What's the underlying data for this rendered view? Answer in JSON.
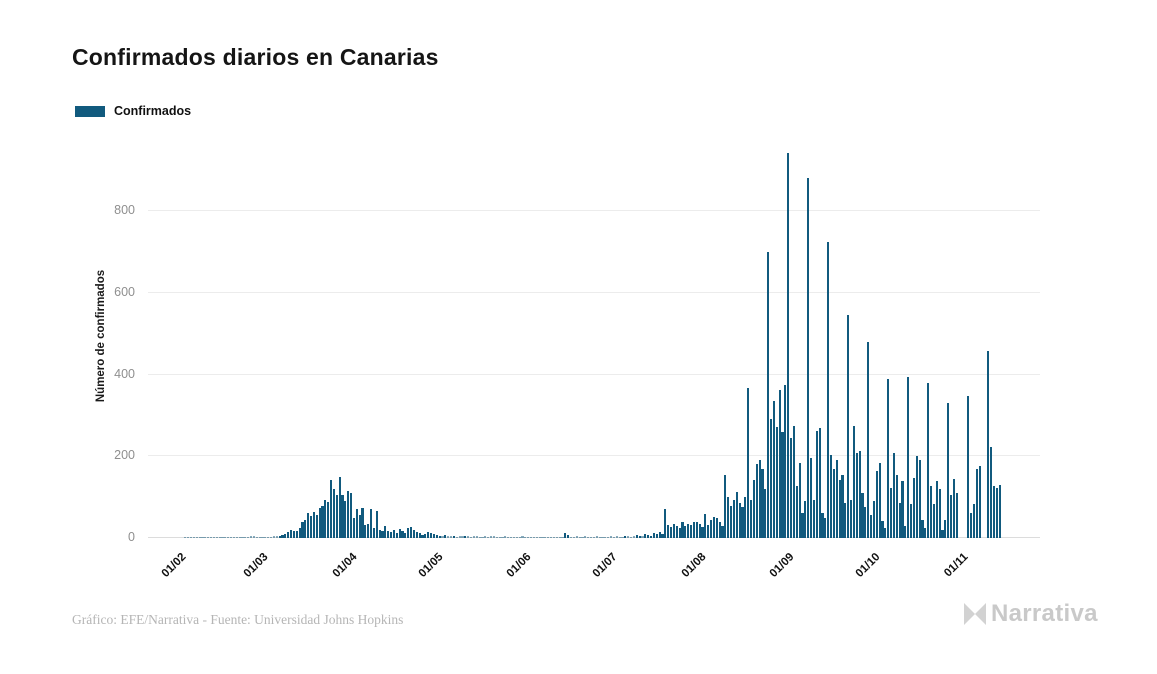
{
  "title": "Confirmados diarios en Canarias",
  "legend": {
    "label": "Confirmados",
    "swatch_color": "#115A7E"
  },
  "footer": {
    "credit": "Gráfico: EFE/Narrativa - Fuente: Universidad Johns Hopkins",
    "brand": "Narrativa"
  },
  "colors": {
    "bar": "#115A7E",
    "grid": "#ececec",
    "y_tick_text": "#8f8f8f",
    "x_tick_text": "#111111",
    "title_text": "#151515",
    "credit_text": "#b5b5b5",
    "brand_gray": "#c9c9c9"
  },
  "chart_data": {
    "type": "bar",
    "title": "Confirmados diarios en Canarias",
    "series_name": "Confirmados",
    "xlabel": "",
    "ylabel": "Número de confirmados",
    "ylim": [
      0,
      960
    ],
    "grid": "horizontal",
    "legend_position": "top-left",
    "y_ticks": [
      0,
      200,
      400,
      600,
      800
    ],
    "x_tick_labels": [
      "01/02",
      "01/03",
      "01/04",
      "01/05",
      "01/06",
      "01/07",
      "01/08",
      "01/09",
      "01/10",
      "01/11"
    ],
    "x_tick_day_indices": [
      10,
      39,
      70,
      100,
      131,
      161,
      192,
      223,
      253,
      284
    ],
    "first_day_label": "22/01",
    "values": [
      0,
      0,
      0,
      0,
      0,
      0,
      0,
      0,
      0,
      0,
      0,
      0,
      1,
      1,
      1,
      1,
      1,
      1,
      1,
      1,
      1,
      1,
      1,
      1,
      1,
      1,
      1,
      1,
      1,
      1,
      1,
      1,
      1,
      1,
      2,
      4,
      5,
      3,
      2,
      2,
      3,
      2,
      3,
      4,
      5,
      6,
      8,
      11,
      15,
      20,
      18,
      16,
      25,
      38,
      45,
      61,
      55,
      64,
      57,
      73,
      78,
      94,
      88,
      143,
      119,
      106,
      150,
      105,
      90,
      115,
      110,
      49,
      70,
      57,
      74,
      33,
      34,
      70,
      25,
      65,
      20,
      16,
      29,
      18,
      15,
      20,
      12,
      23,
      16,
      12,
      25,
      28,
      20,
      15,
      12,
      8,
      10,
      14,
      12,
      10,
      8,
      6,
      5,
      7,
      4,
      5,
      6,
      3,
      4,
      5,
      6,
      4,
      3,
      5,
      4,
      3,
      2,
      4,
      3,
      5,
      4,
      3,
      2,
      3,
      4,
      2,
      3,
      2,
      3,
      2,
      4,
      2,
      3,
      1,
      2,
      2,
      3,
      1,
      2,
      1,
      2,
      3,
      2,
      1,
      2,
      12,
      8,
      3,
      2,
      4,
      3,
      2,
      5,
      3,
      2,
      3,
      4,
      2,
      3,
      2,
      3,
      4,
      3,
      5,
      2,
      3,
      6,
      4,
      3,
      5,
      8,
      6,
      5,
      10,
      8,
      6,
      12,
      9,
      15,
      10,
      70,
      32,
      28,
      35,
      30,
      25,
      38,
      30,
      35,
      32,
      38,
      40,
      35,
      28,
      58,
      31,
      45,
      52,
      48,
      40,
      30,
      155,
      100,
      78,
      92,
      113,
      85,
      75,
      100,
      366,
      92,
      142,
      182,
      190,
      170,
      120,
      700,
      290,
      334,
      272,
      361,
      260,
      375,
      941,
      245,
      274,
      127,
      184,
      61,
      90,
      881,
      196,
      94,
      262,
      270,
      60,
      49,
      724,
      204,
      168,
      192,
      143,
      155,
      85,
      546,
      94,
      274,
      209,
      213,
      110,
      75,
      479,
      57,
      90,
      164,
      184,
      41,
      25,
      389,
      123,
      209,
      155,
      86,
      139,
      30,
      394,
      82,
      147,
      200,
      192,
      45,
      25,
      380,
      127,
      82,
      139,
      119,
      20,
      45,
      330,
      106,
      144,
      111,
      0,
      0,
      0,
      347,
      62,
      83,
      168,
      177,
      0,
      0,
      457,
      222,
      128,
      123,
      130
    ]
  }
}
